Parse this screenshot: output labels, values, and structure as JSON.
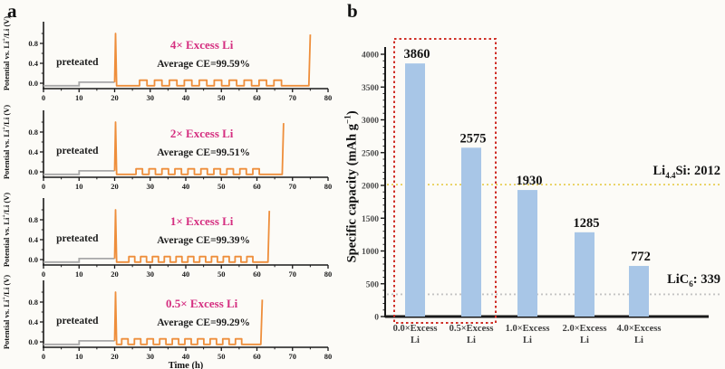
{
  "panel_a": {
    "label": "a",
    "ylabel": {
      "pre": "Potential vs. Li",
      "sup": "+",
      "post": "/Li (V)"
    }
  },
  "panel_b": {
    "label": "b",
    "ylabel": {
      "pre": "Specific capacity (mAh g",
      "sup": "−1",
      "post": ")"
    },
    "ref_lines": [
      {
        "pre": "Li",
        "sub": "4.4",
        "post": "Si: 2012"
      },
      {
        "pre": "LiC",
        "sub": "6",
        "post": ": 339"
      }
    ]
  },
  "colors": {
    "axis": "#1a1a1a",
    "pretreat_gray": "#a8a8a8",
    "cycling_orange": "#ee8e3b",
    "annotation_magenta": "#d52e80",
    "bar_blue": "#a8c6e7",
    "highlight_red": "#cf2e26",
    "ref_yellow": "#e8cf55",
    "ref_gray": "#c3c3c3"
  },
  "chart_data": [
    {
      "type": "line",
      "panel": "a",
      "xlabel": "Time (h)",
      "ylabel": "Potential vs. Li⁺/Li (V)",
      "xlim": [
        0,
        80
      ],
      "ylim": [
        -0.15,
        1.05
      ],
      "x_ticks": [
        0,
        10,
        20,
        30,
        40,
        50,
        60,
        70,
        80
      ],
      "y_ticks": [
        0.0,
        0.4,
        0.8
      ],
      "y_minor_ticks": [
        0.2,
        0.6,
        1.0
      ],
      "x_minor_step": 5,
      "subplots": [
        {
          "annotation": "4× Excess Li",
          "average_ce_label": "Average CE=99.59%",
          "average_ce_pct": 99.59,
          "pretreat_label": "preteated",
          "pretreat_end_h": 20,
          "pretreat_step_h": 10,
          "first_spike_h": 20,
          "pulse_start_h": 27,
          "pulse_end_h": 69,
          "n_pulses": 10,
          "final_spike_time_h": 75,
          "final_spike_v": 0.98
        },
        {
          "annotation": "2× Excess Li",
          "average_ce_label": "Average CE=99.51%",
          "average_ce_pct": 99.51,
          "pretreat_label": "preteated",
          "pretreat_end_h": 20,
          "pretreat_step_h": 10,
          "first_spike_h": 20,
          "pulse_start_h": 26,
          "pulse_end_h": 62.5,
          "n_pulses": 10,
          "final_spike_time_h": 67.5,
          "final_spike_v": 0.98
        },
        {
          "annotation": "1× Excess Li",
          "average_ce_label": "Average CE=99.39%",
          "average_ce_pct": 99.39,
          "pretreat_label": "preteated",
          "pretreat_end_h": 20,
          "pretreat_step_h": 10,
          "first_spike_h": 20,
          "pulse_start_h": 24,
          "pulse_end_h": 60.5,
          "n_pulses": 11,
          "final_spike_time_h": 63.5,
          "final_spike_v": 0.98
        },
        {
          "annotation": "0.5× Excess Li",
          "average_ce_label": "Average CE=99.29%",
          "average_ce_pct": 99.29,
          "pretreat_label": "preteated",
          "pretreat_end_h": 20,
          "pretreat_step_h": 10,
          "first_spike_h": 20,
          "pulse_start_h": 22,
          "pulse_end_h": 57.5,
          "n_pulses": 10,
          "final_spike_time_h": 61.5,
          "final_spike_v": 0.85
        }
      ]
    },
    {
      "type": "bar",
      "panel": "b",
      "ylabel": "Specific capacity (mAh g⁻¹)",
      "ylim": [
        0,
        4000
      ],
      "y_tick_step": 500,
      "y_minor_step": 100,
      "categories": [
        "0.0×Excess Li",
        "0.5×Excess Li",
        "1.0×Excess Li",
        "2.0×Excess Li",
        "4.0×Excess Li"
      ],
      "category_line1": [
        "0.0×Excess",
        "0.5×Excess",
        "1.0×Excess",
        "2.0×Excess",
        "4.0×Excess"
      ],
      "category_line2": "Li",
      "values": [
        3860,
        2575,
        1930,
        1285,
        772
      ],
      "highlighted_categories": [
        0,
        1
      ],
      "ref_lines": [
        {
          "label": "Li4.4Si: 2012",
          "value": 2012
        },
        {
          "label": "LiC6: 339",
          "value": 339
        }
      ]
    }
  ]
}
